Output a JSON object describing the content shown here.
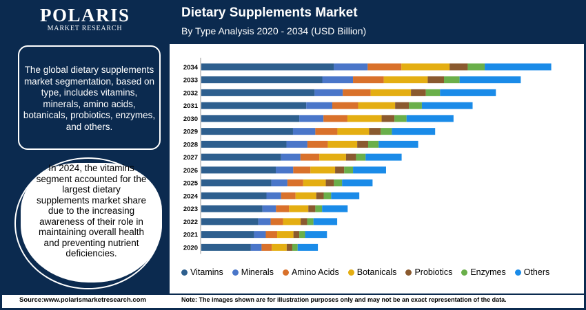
{
  "brand": {
    "name": "POLARIS",
    "subtitle": "MARKET RESEARCH"
  },
  "header": {
    "title": "Dietary Supplements Market",
    "subtitle": "By Type Analysis 2020 - 2034 (USD Billion)"
  },
  "sidebar": {
    "description": "The global dietary supplements market segmentation, based on type, includes vitamins, minerals, amino acids, botanicals, probiotics, enzymes, and others.",
    "highlight": "In 2024, the vitamins segment accounted for the largest dietary supplements market share due to the increasing awareness of their role in maintaining overall health and preventing nutrient deficiencies."
  },
  "footer": {
    "source": "Source:www.polarismarketresearch.com",
    "note": "Note: The images shown are for illustration purposes only and may not be an exact representation of the data."
  },
  "colors": {
    "navy": "#0b2a4f",
    "Vitamins": "#2e5f8e",
    "Minerals": "#4a76c9",
    "Amino Acids": "#d9712b",
    "Botanicals": "#e4ae12",
    "Probiotics": "#8a5a2f",
    "Enzymes": "#6aaf4a",
    "Others": "#1a8be8"
  },
  "chart_data": {
    "type": "bar",
    "orientation": "horizontal",
    "stacked": true,
    "categories": [
      "2034",
      "2033",
      "2032",
      "2031",
      "2030",
      "2029",
      "2028",
      "2027",
      "2026",
      "2025",
      "2024",
      "2023",
      "2022",
      "2021",
      "2020"
    ],
    "series": [
      {
        "name": "Vitamins",
        "values": [
          57.0,
          52.0,
          48.7,
          45.1,
          42.1,
          39.4,
          36.6,
          34.3,
          32.0,
          30.1,
          28.0,
          26.3,
          24.5,
          22.7,
          21.3
        ]
      },
      {
        "name": "Minerals",
        "values": [
          14.5,
          13.2,
          12.1,
          11.2,
          10.4,
          9.6,
          9.0,
          8.3,
          7.5,
          6.9,
          6.3,
          5.8,
          5.3,
          5.0,
          4.6
        ]
      },
      {
        "name": "Amino Acids",
        "values": [
          14.5,
          13.2,
          12.0,
          11.1,
          10.3,
          9.5,
          8.8,
          8.1,
          7.4,
          6.8,
          6.2,
          5.6,
          5.3,
          4.9,
          4.4
        ]
      },
      {
        "name": "Botanicals",
        "values": [
          20.7,
          18.9,
          17.3,
          15.9,
          14.7,
          13.6,
          12.6,
          11.5,
          10.6,
          9.7,
          8.9,
          8.3,
          7.6,
          7.0,
          6.4
        ]
      },
      {
        "name": "Probiotics",
        "values": [
          7.8,
          7.0,
          6.4,
          5.9,
          5.5,
          5.0,
          4.7,
          4.3,
          3.9,
          3.5,
          3.2,
          3.0,
          2.8,
          2.5,
          2.4
        ]
      },
      {
        "name": "Enzymes",
        "values": [
          7.3,
          6.7,
          6.1,
          5.6,
          5.2,
          4.8,
          4.5,
          4.1,
          3.8,
          3.5,
          3.2,
          2.9,
          2.7,
          2.5,
          2.3
        ]
      },
      {
        "name": "Others",
        "values": [
          28.6,
          26.3,
          24.0,
          21.8,
          20.2,
          18.6,
          17.0,
          15.5,
          14.2,
          13.1,
          12.1,
          11.0,
          10.2,
          9.4,
          8.7
        ]
      }
    ],
    "title": "Dietary Supplements Market",
    "subtitle": "By Type Analysis 2020 - 2034 (USD Billion)",
    "xlim": [
      0,
      160
    ],
    "grid": false,
    "legend": "bottom"
  }
}
